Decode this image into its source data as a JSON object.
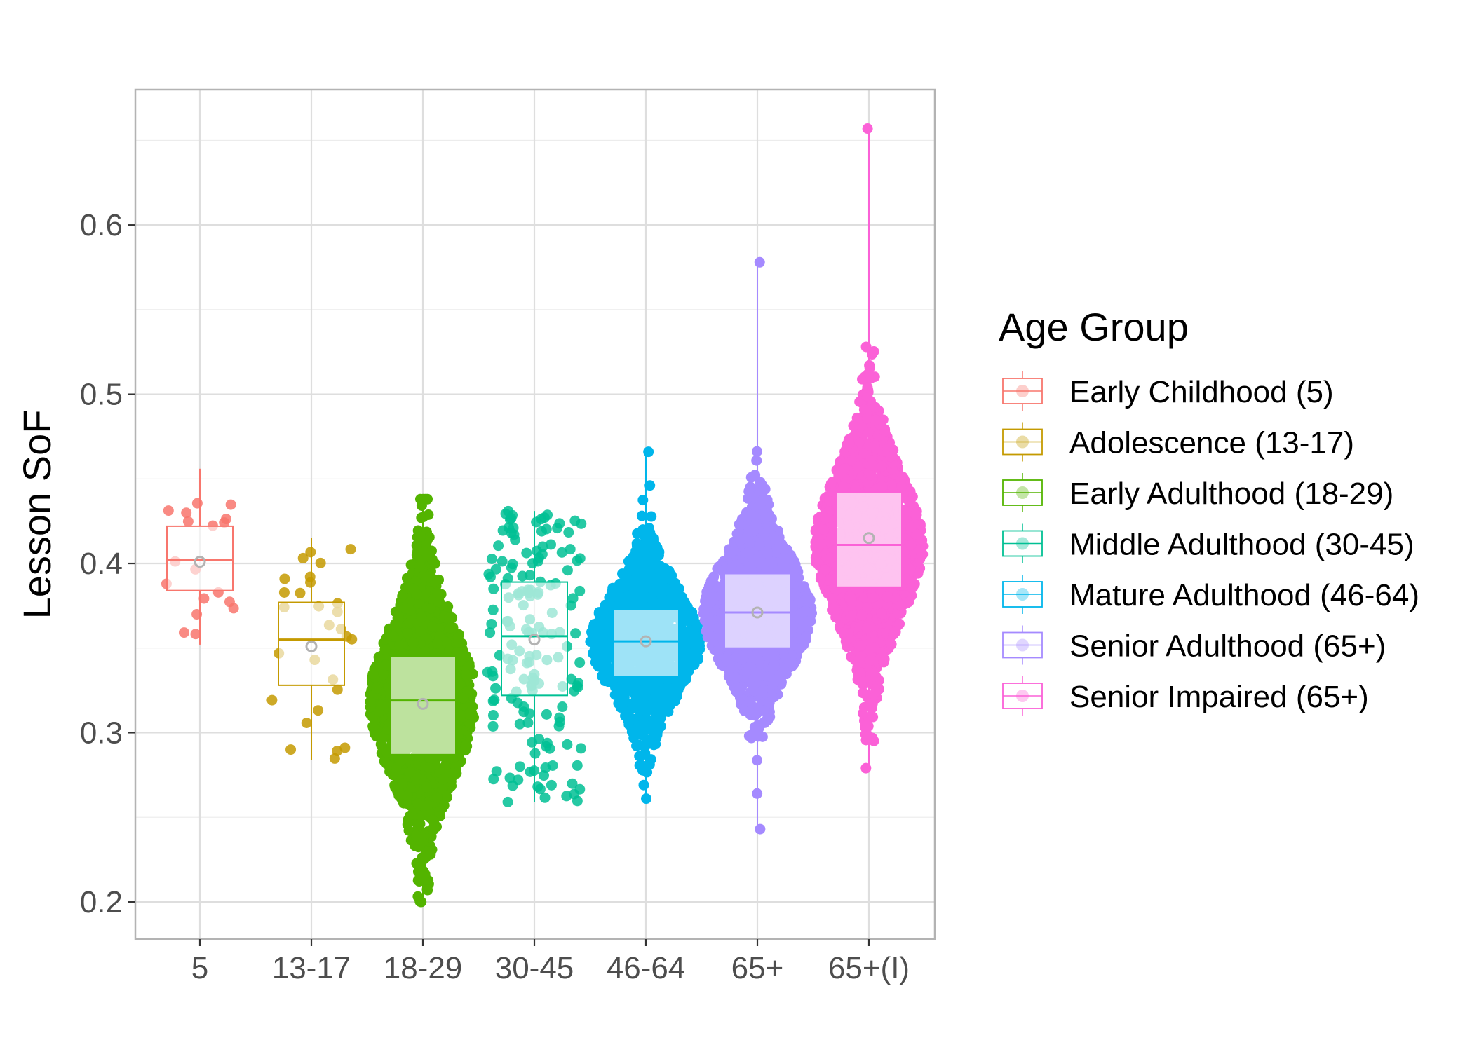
{
  "chart_data": {
    "type": "box",
    "variant": "boxplot with beeswarm points and mean markers",
    "xlabel": "",
    "ylabel": "Lesson SoF",
    "ylim": [
      0.178,
      0.68
    ],
    "yticks": [
      0.2,
      0.3,
      0.4,
      0.5,
      0.6
    ],
    "ytick_labels": [
      "0.2",
      "0.3",
      "0.4",
      "0.5",
      "0.6"
    ],
    "grid": true,
    "legend": {
      "title": "Age Group",
      "placement": "right"
    },
    "categories": [
      "5",
      "13-17",
      "18-29",
      "30-45",
      "46-64",
      "65+",
      "65+(I)"
    ],
    "series": [
      {
        "name": "Early Childhood (5)",
        "category": "5",
        "color": "#F8766D",
        "box": {
          "q1": 0.384,
          "median": 0.402,
          "q3": 0.422,
          "whisker_low": 0.352,
          "whisker_high": 0.456
        },
        "mean": 0.401,
        "n": 18,
        "max_jitter": 0.35
      },
      {
        "name": "Adolescence (13-17)",
        "category": "13-17",
        "color": "#C49A00",
        "box": {
          "q1": 0.328,
          "median": 0.355,
          "q3": 0.377,
          "whisker_low": 0.284,
          "whisker_high": 0.415
        },
        "mean": 0.351,
        "n": 28,
        "max_jitter": 0.38
      },
      {
        "name": "Early Adulthood (18-29)",
        "category": "18-29",
        "color": "#53B400",
        "box": {
          "q1": 0.287,
          "median": 0.319,
          "q3": 0.345,
          "whisker_low": 0.2,
          "whisker_high": 0.438
        },
        "mean": 0.317,
        "n": 1600,
        "max_jitter": 0.44
      },
      {
        "name": "Middle Adulthood (30-45)",
        "category": "30-45",
        "color": "#00C094",
        "box": {
          "q1": 0.322,
          "median": 0.357,
          "q3": 0.389,
          "whisker_low": 0.259,
          "whisker_high": 0.431
        },
        "mean": 0.355,
        "n": 160,
        "max_jitter": 0.42
      },
      {
        "name": "Mature Adulthood (46-64)",
        "category": "46-64",
        "color": "#00B6EB",
        "box": {
          "q1": 0.333,
          "median": 0.354,
          "q3": 0.373,
          "whisker_low": 0.261,
          "whisker_high": 0.466
        },
        "mean": 0.354,
        "n": 1100,
        "max_jitter": 0.46
      },
      {
        "name": "Senior Adulthood (65+)",
        "category": "65+",
        "color": "#A58AFF",
        "box": {
          "q1": 0.35,
          "median": 0.371,
          "q3": 0.394,
          "whisker_low": 0.243,
          "whisker_high": 0.578
        },
        "mean": 0.371,
        "n": 1400,
        "max_jitter": 0.45
      },
      {
        "name": "Senior Impaired (65+)",
        "category": "65+(I)",
        "color": "#FB61D7",
        "box": {
          "q1": 0.386,
          "median": 0.411,
          "q3": 0.442,
          "whisker_low": 0.279,
          "whisker_high": 0.657
        },
        "mean": 0.415,
        "n": 1700,
        "max_jitter": 0.45
      }
    ]
  }
}
